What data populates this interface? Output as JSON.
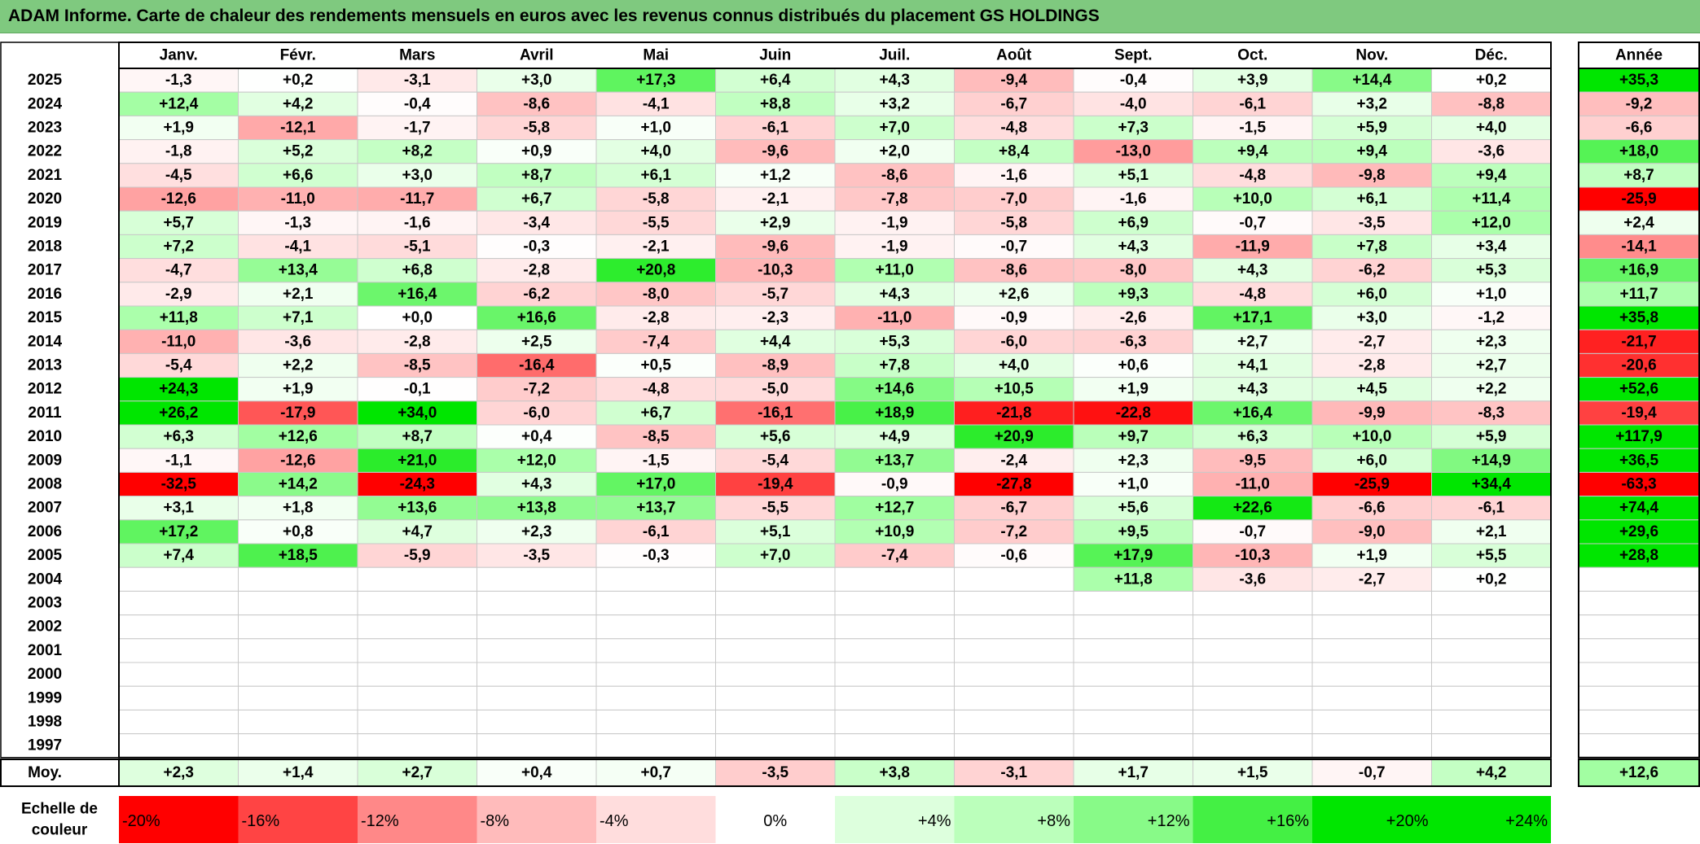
{
  "title": "ADAM Informe. Carte de chaleur des rendements mensuels en euros avec les revenus connus distribués du placement GS HOLDINGS",
  "colors": {
    "title_bg": "#7fc97f",
    "positive_max": "#00e600",
    "negative_max": "#ff0000",
    "neutral": "#ffffff"
  },
  "chart_data": {
    "type": "heatmap",
    "title": "ADAM Informe. Carte de chaleur des rendements mensuels en euros avec les revenus connus distribués du placement GS HOLDINGS",
    "months": [
      "Janv.",
      "Févr.",
      "Mars",
      "Avril",
      "Mai",
      "Juin",
      "Juil.",
      "Août",
      "Sept.",
      "Oct.",
      "Nov.",
      "Déc."
    ],
    "year_header": "Année",
    "rows": [
      {
        "year": "2025",
        "values": [
          "-1,3",
          "+0,2",
          "-3,1",
          "+3,0",
          "+17,3",
          "+6,4",
          "+4,3",
          "-9,4",
          "-0,4",
          "+3,9",
          "+14,4",
          "+0,2"
        ],
        "annual": "+35,3"
      },
      {
        "year": "2024",
        "values": [
          "+12,4",
          "+4,2",
          "-0,4",
          "-8,6",
          "-4,1",
          "+8,8",
          "+3,2",
          "-6,7",
          "-4,0",
          "-6,1",
          "+3,2",
          "-8,8"
        ],
        "annual": "-9,2"
      },
      {
        "year": "2023",
        "values": [
          "+1,9",
          "-12,1",
          "-1,7",
          "-5,8",
          "+1,0",
          "-6,1",
          "+7,0",
          "-4,8",
          "+7,3",
          "-1,5",
          "+5,9",
          "+4,0"
        ],
        "annual": "-6,6"
      },
      {
        "year": "2022",
        "values": [
          "-1,8",
          "+5,2",
          "+8,2",
          "+0,9",
          "+4,0",
          "-9,6",
          "+2,0",
          "+8,4",
          "-13,0",
          "+9,4",
          "+9,4",
          "-3,6"
        ],
        "annual": "+18,0"
      },
      {
        "year": "2021",
        "values": [
          "-4,5",
          "+6,6",
          "+3,0",
          "+8,7",
          "+6,1",
          "+1,2",
          "-8,6",
          "-1,6",
          "+5,1",
          "-4,8",
          "-9,8",
          "+9,4"
        ],
        "annual": "+8,7"
      },
      {
        "year": "2020",
        "values": [
          "-12,6",
          "-11,0",
          "-11,7",
          "+6,7",
          "-5,8",
          "-2,1",
          "-7,8",
          "-7,0",
          "-1,6",
          "+10,0",
          "+6,1",
          "+11,4"
        ],
        "annual": "-25,9"
      },
      {
        "year": "2019",
        "values": [
          "+5,7",
          "-1,3",
          "-1,6",
          "-3,4",
          "-5,5",
          "+2,9",
          "-1,9",
          "-5,8",
          "+6,9",
          "-0,7",
          "-3,5",
          "+12,0"
        ],
        "annual": "+2,4"
      },
      {
        "year": "2018",
        "values": [
          "+7,2",
          "-4,1",
          "-5,1",
          "-0,3",
          "-2,1",
          "-9,6",
          "-1,9",
          "-0,7",
          "+4,3",
          "-11,9",
          "+7,8",
          "+3,4"
        ],
        "annual": "-14,1"
      },
      {
        "year": "2017",
        "values": [
          "-4,7",
          "+13,4",
          "+6,8",
          "-2,8",
          "+20,8",
          "-10,3",
          "+11,0",
          "-8,6",
          "-8,0",
          "+4,3",
          "-6,2",
          "+5,3"
        ],
        "annual": "+16,9"
      },
      {
        "year": "2016",
        "values": [
          "-2,9",
          "+2,1",
          "+16,4",
          "-6,2",
          "-8,0",
          "-5,7",
          "+4,3",
          "+2,6",
          "+9,3",
          "-4,8",
          "+6,0",
          "+1,0"
        ],
        "annual": "+11,7"
      },
      {
        "year": "2015",
        "values": [
          "+11,8",
          "+7,1",
          "+0,0",
          "+16,6",
          "-2,8",
          "-2,3",
          "-11,0",
          "-0,9",
          "-2,6",
          "+17,1",
          "+3,0",
          "-1,2"
        ],
        "annual": "+35,8"
      },
      {
        "year": "2014",
        "values": [
          "-11,0",
          "-3,6",
          "-2,8",
          "+2,5",
          "-7,4",
          "+4,4",
          "+5,3",
          "-6,0",
          "-6,3",
          "+2,7",
          "-2,7",
          "+2,3"
        ],
        "annual": "-21,7"
      },
      {
        "year": "2013",
        "values": [
          "-5,4",
          "+2,2",
          "-8,5",
          "-16,4",
          "+0,5",
          "-8,9",
          "+7,8",
          "+4,0",
          "+0,6",
          "+4,1",
          "-2,8",
          "+2,7"
        ],
        "annual": "-20,6"
      },
      {
        "year": "2012",
        "values": [
          "+24,3",
          "+1,9",
          "-0,1",
          "-7,2",
          "-4,8",
          "-5,0",
          "+14,6",
          "+10,5",
          "+1,9",
          "+4,3",
          "+4,5",
          "+2,2"
        ],
        "annual": "+52,6"
      },
      {
        "year": "2011",
        "values": [
          "+26,2",
          "-17,9",
          "+34,0",
          "-6,0",
          "+6,7",
          "-16,1",
          "+18,9",
          "-21,8",
          "-22,8",
          "+16,4",
          "-9,9",
          "-8,3"
        ],
        "annual": "-19,4"
      },
      {
        "year": "2010",
        "values": [
          "+6,3",
          "+12,6",
          "+8,7",
          "+0,4",
          "-8,5",
          "+5,6",
          "+4,9",
          "+20,9",
          "+9,7",
          "+6,3",
          "+10,0",
          "+5,9"
        ],
        "annual": "+117,9"
      },
      {
        "year": "2009",
        "values": [
          "-1,1",
          "-12,6",
          "+21,0",
          "+12,0",
          "-1,5",
          "-5,4",
          "+13,7",
          "-2,4",
          "+2,3",
          "-9,5",
          "+6,0",
          "+14,9"
        ],
        "annual": "+36,5"
      },
      {
        "year": "2008",
        "values": [
          "-32,5",
          "+14,2",
          "-24,3",
          "+4,3",
          "+17,0",
          "-19,4",
          "-0,9",
          "-27,8",
          "+1,0",
          "-11,0",
          "-25,9",
          "+34,4"
        ],
        "annual": "-63,3"
      },
      {
        "year": "2007",
        "values": [
          "+3,1",
          "+1,8",
          "+13,6",
          "+13,8",
          "+13,7",
          "-5,5",
          "+12,7",
          "-6,7",
          "+5,6",
          "+22,6",
          "-6,6",
          "-6,1"
        ],
        "annual": "+74,4"
      },
      {
        "year": "2006",
        "values": [
          "+17,2",
          "+0,8",
          "+4,7",
          "+2,3",
          "-6,1",
          "+5,1",
          "+10,9",
          "-7,2",
          "+9,5",
          "-0,7",
          "-9,0",
          "+2,1"
        ],
        "annual": "+29,6"
      },
      {
        "year": "2005",
        "values": [
          "+7,4",
          "+18,5",
          "-5,9",
          "-3,5",
          "-0,3",
          "+7,0",
          "-7,4",
          "-0,6",
          "+17,9",
          "-10,3",
          "+1,9",
          "+5,5"
        ],
        "annual": "+28,8"
      },
      {
        "year": "2004",
        "values": [
          "",
          "",
          "",
          "",
          "",
          "",
          "",
          "",
          "+11,8",
          "-3,6",
          "-2,7",
          "+0,2"
        ],
        "annual": ""
      },
      {
        "year": "2003",
        "values": [
          "",
          "",
          "",
          "",
          "",
          "",
          "",
          "",
          "",
          "",
          "",
          ""
        ],
        "annual": ""
      },
      {
        "year": "2002",
        "values": [
          "",
          "",
          "",
          "",
          "",
          "",
          "",
          "",
          "",
          "",
          "",
          ""
        ],
        "annual": ""
      },
      {
        "year": "2001",
        "values": [
          "",
          "",
          "",
          "",
          "",
          "",
          "",
          "",
          "",
          "",
          "",
          ""
        ],
        "annual": ""
      },
      {
        "year": "2000",
        "values": [
          "",
          "",
          "",
          "",
          "",
          "",
          "",
          "",
          "",
          "",
          "",
          ""
        ],
        "annual": ""
      },
      {
        "year": "1999",
        "values": [
          "",
          "",
          "",
          "",
          "",
          "",
          "",
          "",
          "",
          "",
          "",
          ""
        ],
        "annual": ""
      },
      {
        "year": "1998",
        "values": [
          "",
          "",
          "",
          "",
          "",
          "",
          "",
          "",
          "",
          "",
          "",
          ""
        ],
        "annual": ""
      },
      {
        "year": "1997",
        "values": [
          "",
          "",
          "",
          "",
          "",
          "",
          "",
          "",
          "",
          "",
          "",
          ""
        ],
        "annual": ""
      }
    ],
    "average": {
      "label": "Moy.",
      "values": [
        "+2,3",
        "+1,4",
        "+2,7",
        "+0,4",
        "+0,7",
        "-3,5",
        "+3,8",
        "-3,1",
        "+1,7",
        "+1,5",
        "-0,7",
        "+4,2"
      ],
      "annual": "+12,6"
    },
    "scale": {
      "label_line1": "Echelle de",
      "label_line2": "couleur",
      "steps": [
        {
          "label": "-20%",
          "value": -20
        },
        {
          "label": "-16%",
          "value": -16
        },
        {
          "label": "-12%",
          "value": -12
        },
        {
          "label": "-8%",
          "value": -8
        },
        {
          "label": "-4%",
          "value": -4
        },
        {
          "label": "0%",
          "value": 0
        },
        {
          "label": "+4%",
          "value": 4
        },
        {
          "label": "+8%",
          "value": 8
        },
        {
          "label": "+12%",
          "value": 12
        },
        {
          "label": "+16%",
          "value": 16
        },
        {
          "label": "+20%",
          "value": 20
        },
        {
          "label": "+24%",
          "value": 24
        }
      ]
    }
  }
}
